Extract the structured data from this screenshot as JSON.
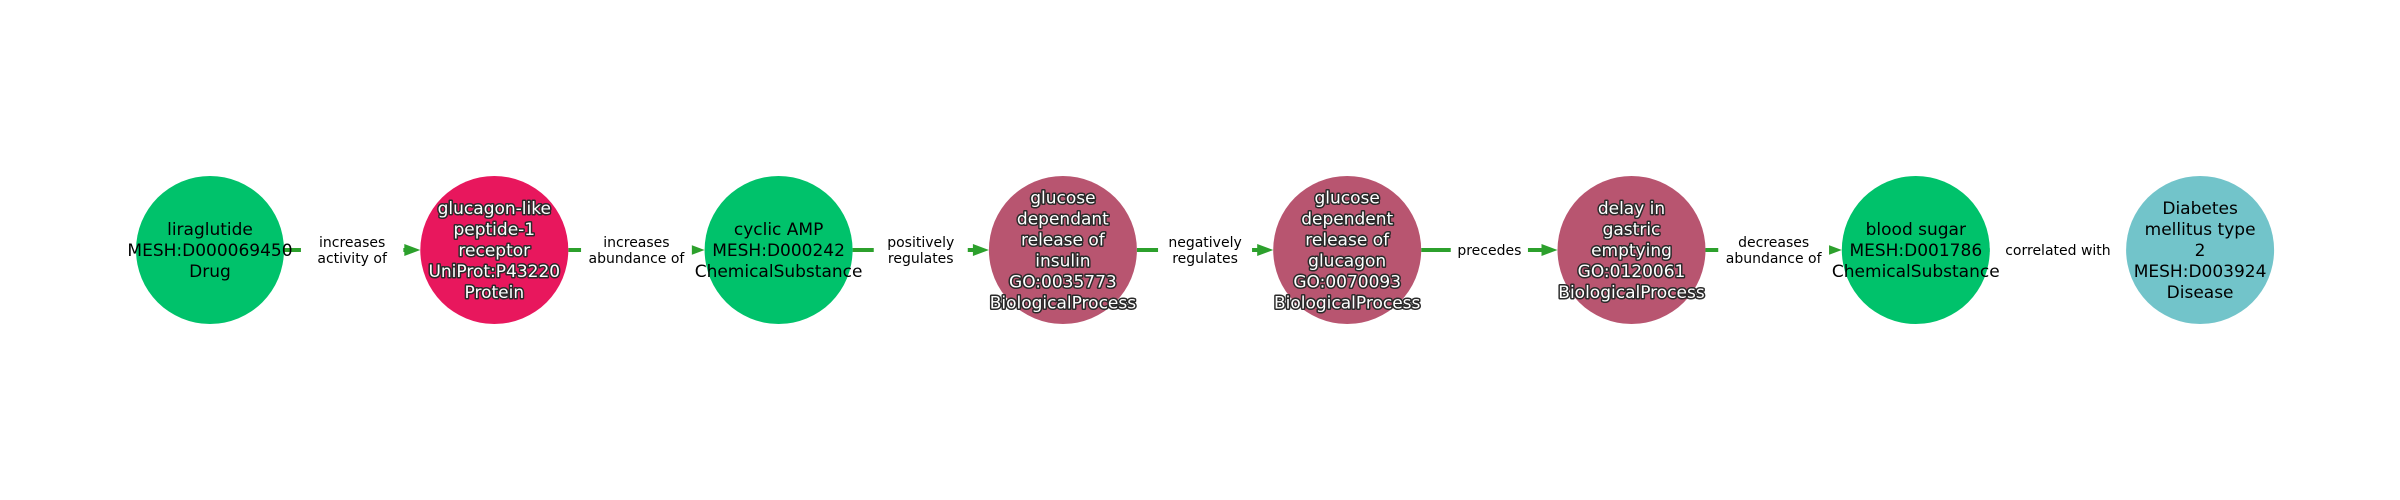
{
  "colors": {
    "drug": "#00c26b",
    "protein": "#e8175d",
    "chemical": "#00c26b",
    "process": "#b85570",
    "disease": "#72c4ca",
    "edge": "#2ca02c"
  },
  "nodes": [
    {
      "id": "liraglutide",
      "category": "drug",
      "text_color": "#000000",
      "halo": false,
      "lines": [
        "liraglutide",
        "MESH:D000069450",
        "Drug"
      ]
    },
    {
      "id": "glp1r",
      "category": "protein",
      "text_color": "#ffffff",
      "halo": true,
      "lines": [
        "glucagon-like",
        "peptide-1",
        "receptor",
        "UniProt:P43220",
        "Protein"
      ]
    },
    {
      "id": "camp",
      "category": "chemical",
      "text_color": "#000000",
      "halo": false,
      "lines": [
        "cyclic AMP",
        "MESH:D000242",
        "ChemicalSubstance"
      ]
    },
    {
      "id": "insulin-release",
      "category": "process",
      "text_color": "#ffffff",
      "halo": true,
      "lines": [
        "glucose",
        "dependant",
        "release of",
        "insulin",
        "GO:0035773",
        "BiologicalProcess"
      ]
    },
    {
      "id": "glucagon-release",
      "category": "process",
      "text_color": "#ffffff",
      "halo": true,
      "lines": [
        "glucose",
        "dependent",
        "release of",
        "glucagon",
        "GO:0070093",
        "BiologicalProcess"
      ]
    },
    {
      "id": "gastric-emptying",
      "category": "process",
      "text_color": "#ffffff",
      "halo": true,
      "lines": [
        "delay in",
        "gastric",
        "emptying",
        "GO:0120061",
        "BiologicalProcess"
      ]
    },
    {
      "id": "blood-sugar",
      "category": "chemical",
      "text_color": "#000000",
      "halo": false,
      "lines": [
        "blood sugar",
        "MESH:D001786",
        "ChemicalSubstance"
      ]
    },
    {
      "id": "diabetes-t2",
      "category": "disease",
      "text_color": "#000000",
      "halo": false,
      "lines": [
        "Diabetes",
        "mellitus type",
        "2",
        "MESH:D003924",
        "Disease"
      ]
    }
  ],
  "edges": [
    {
      "from": 0,
      "to": 1,
      "lines": [
        "increases",
        "activity of"
      ]
    },
    {
      "from": 1,
      "to": 2,
      "lines": [
        "increases",
        "abundance of"
      ]
    },
    {
      "from": 2,
      "to": 3,
      "lines": [
        "positively",
        "regulates"
      ]
    },
    {
      "from": 3,
      "to": 4,
      "lines": [
        "negatively",
        "regulates"
      ]
    },
    {
      "from": 4,
      "to": 5,
      "lines": [
        "precedes"
      ]
    },
    {
      "from": 5,
      "to": 6,
      "lines": [
        "decreases",
        "abundance of"
      ]
    },
    {
      "from": 6,
      "to": 7,
      "lines": [
        "correlated with"
      ]
    }
  ]
}
